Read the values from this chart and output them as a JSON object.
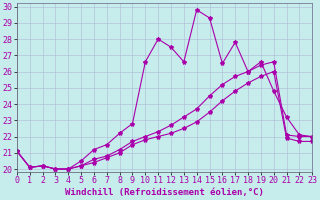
{
  "xlabel": "Windchill (Refroidissement éolien,°C)",
  "xlim": [
    0,
    23
  ],
  "ylim": [
    19.8,
    30.2
  ],
  "xticks": [
    0,
    1,
    2,
    3,
    4,
    5,
    6,
    7,
    8,
    9,
    10,
    11,
    12,
    13,
    14,
    15,
    16,
    17,
    18,
    19,
    20,
    21,
    22,
    23
  ],
  "yticks": [
    20,
    21,
    22,
    23,
    24,
    25,
    26,
    27,
    28,
    29,
    30
  ],
  "background_color": "#c6ecec",
  "grid_color": "#b0b8d8",
  "line_color": "#aa00aa",
  "line1_y": [
    21.1,
    20.1,
    20.2,
    20.0,
    20.0,
    20.2,
    20.6,
    20.8,
    21.2,
    21.7,
    22.0,
    22.3,
    22.7,
    23.2,
    23.7,
    24.5,
    25.2,
    25.7,
    26.0,
    26.4,
    26.6,
    22.1,
    22.0,
    22.0
  ],
  "line2_y": [
    21.1,
    20.1,
    20.2,
    20.0,
    20.0,
    20.5,
    21.2,
    21.5,
    22.2,
    22.8,
    26.6,
    28.0,
    27.5,
    26.6,
    29.8,
    29.3,
    26.5,
    27.8,
    26.0,
    26.6,
    24.8,
    23.2,
    22.1,
    22.0
  ],
  "line3_y": [
    21.1,
    20.1,
    20.2,
    20.0,
    20.0,
    20.2,
    20.4,
    20.7,
    21.0,
    21.5,
    21.8,
    22.0,
    22.2,
    22.5,
    22.9,
    23.5,
    24.2,
    24.8,
    25.3,
    25.7,
    26.0,
    21.9,
    21.7,
    21.7
  ],
  "marker": "*",
  "marker_size": 3,
  "linewidth": 0.8,
  "font_size_xlabel": 6.5,
  "font_size_ticks": 6
}
